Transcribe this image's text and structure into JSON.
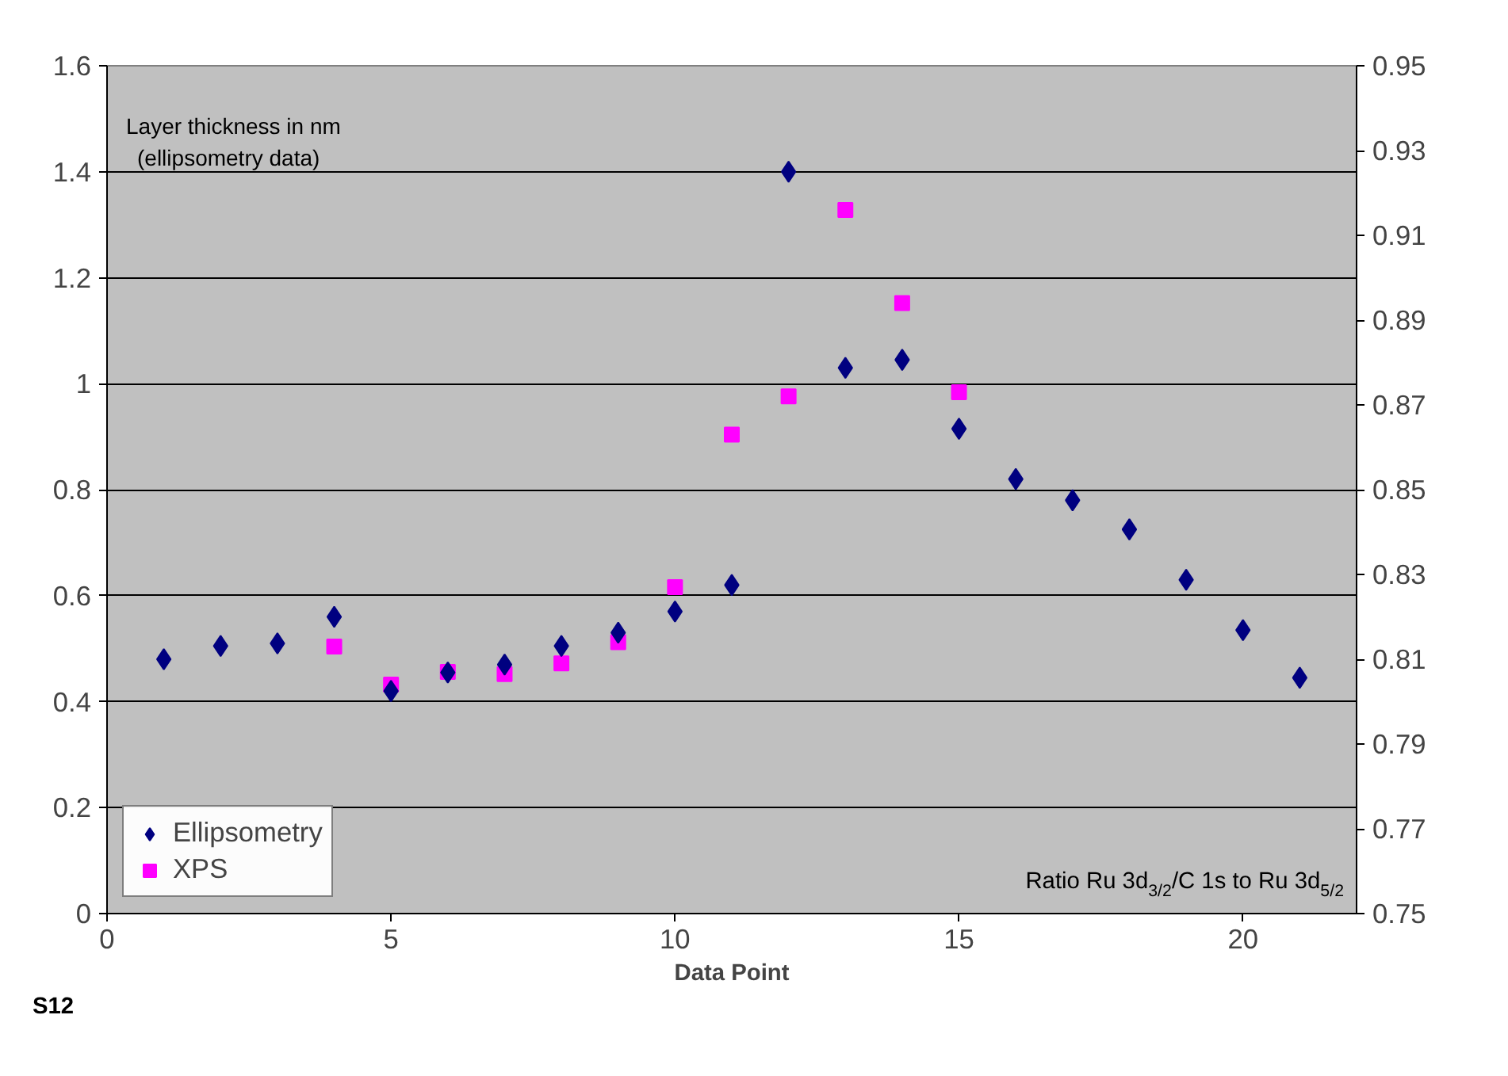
{
  "chart_data": {
    "type": "scatter",
    "xlabel": "Data Point",
    "ylabel": "Layer thickness in nm\n(ellipsometry data)",
    "y2label": "Ratio Ru 3d$_{3/2}$/C 1s to Ru 3d$_{5/2}$",
    "annotations": [
      "S12"
    ],
    "xlim": [
      0,
      22
    ],
    "xticks": [
      0,
      5,
      10,
      15,
      20
    ],
    "ylim": [
      0,
      1.6
    ],
    "yticks": [
      0,
      0.2,
      0.4,
      0.6,
      0.8,
      1,
      1.2,
      1.4,
      1.6
    ],
    "y2lim": [
      0.75,
      0.95
    ],
    "y2ticks": [
      0.75,
      0.77,
      0.79,
      0.81,
      0.83,
      0.85,
      0.87,
      0.89,
      0.91,
      0.93,
      0.95
    ],
    "grid": "y",
    "legend": "bottom left",
    "series": [
      {
        "name": "Ellipsometry",
        "color": "#000080",
        "marker": "diamond",
        "x": [
          1,
          2,
          3,
          4,
          5,
          6,
          7,
          8,
          9,
          10,
          11,
          12,
          13,
          14,
          15,
          16,
          17,
          18,
          19,
          20,
          21
        ],
        "values": [
          0.48,
          0.505,
          0.51,
          0.56,
          0.42,
          0.455,
          0.47,
          0.505,
          0.53,
          0.57,
          0.62,
          1.4,
          1.03,
          1.045,
          0.915,
          0.82,
          0.78,
          0.725,
          0.63,
          0.535,
          0.445
        ]
      },
      {
        "name": "XPS",
        "color": "#ff00ff",
        "marker": "square",
        "axis": "y2",
        "x": [
          4,
          5,
          6,
          7,
          8,
          9,
          10,
          11,
          12,
          13,
          14,
          15
        ],
        "values": [
          0.813,
          0.804,
          0.807,
          0.8065,
          0.809,
          0.814,
          0.827,
          0.863,
          0.872,
          0.916,
          0.894,
          0.873
        ]
      }
    ]
  }
}
